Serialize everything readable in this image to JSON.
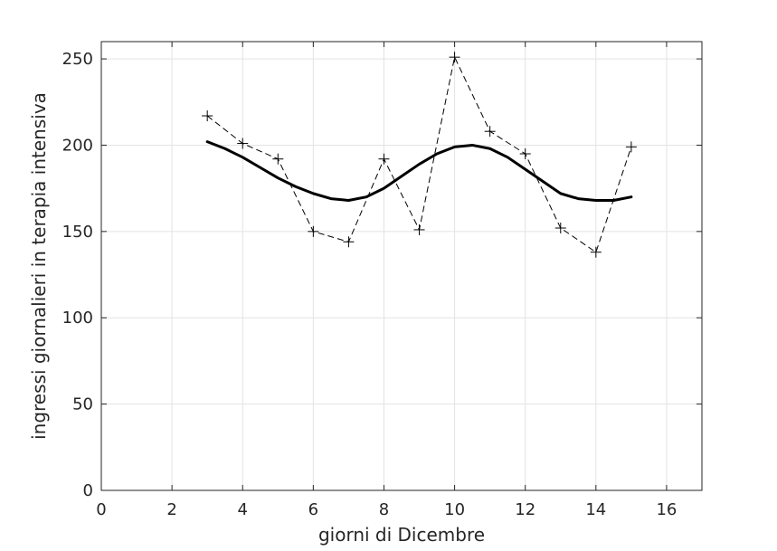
{
  "chart_data": {
    "type": "line",
    "title": "",
    "xlabel": "giorni di Dicembre",
    "ylabel": "ingressi giornalieri in terapia intensiva",
    "xlim": [
      0,
      17
    ],
    "ylim": [
      0,
      260
    ],
    "xticks": [
      0,
      2,
      4,
      6,
      8,
      10,
      12,
      14,
      16
    ],
    "yticks": [
      0,
      50,
      100,
      150,
      200,
      250
    ],
    "grid": true,
    "series": [
      {
        "style": "dashed-plus-markers",
        "color": "#000000",
        "x": [
          3,
          4,
          5,
          6,
          7,
          8,
          9,
          10,
          11,
          12,
          13,
          14,
          15
        ],
        "y": [
          217,
          201,
          192,
          150,
          144,
          192,
          151,
          251,
          208,
          195,
          152,
          138,
          199
        ]
      },
      {
        "style": "solid-thick",
        "color": "#000000",
        "x": [
          3,
          3.5,
          4,
          4.5,
          5,
          5.5,
          6,
          6.5,
          7,
          7.5,
          8,
          8.5,
          9,
          9.5,
          10,
          10.5,
          11,
          11.5,
          12,
          12.5,
          13,
          13.5,
          14,
          14.5,
          15
        ],
        "y": [
          202,
          198,
          193,
          187,
          181,
          176,
          172,
          169,
          168,
          170,
          175,
          182,
          189,
          195,
          199,
          200,
          198,
          193,
          186,
          179,
          172,
          169,
          168,
          168,
          170
        ]
      }
    ]
  }
}
